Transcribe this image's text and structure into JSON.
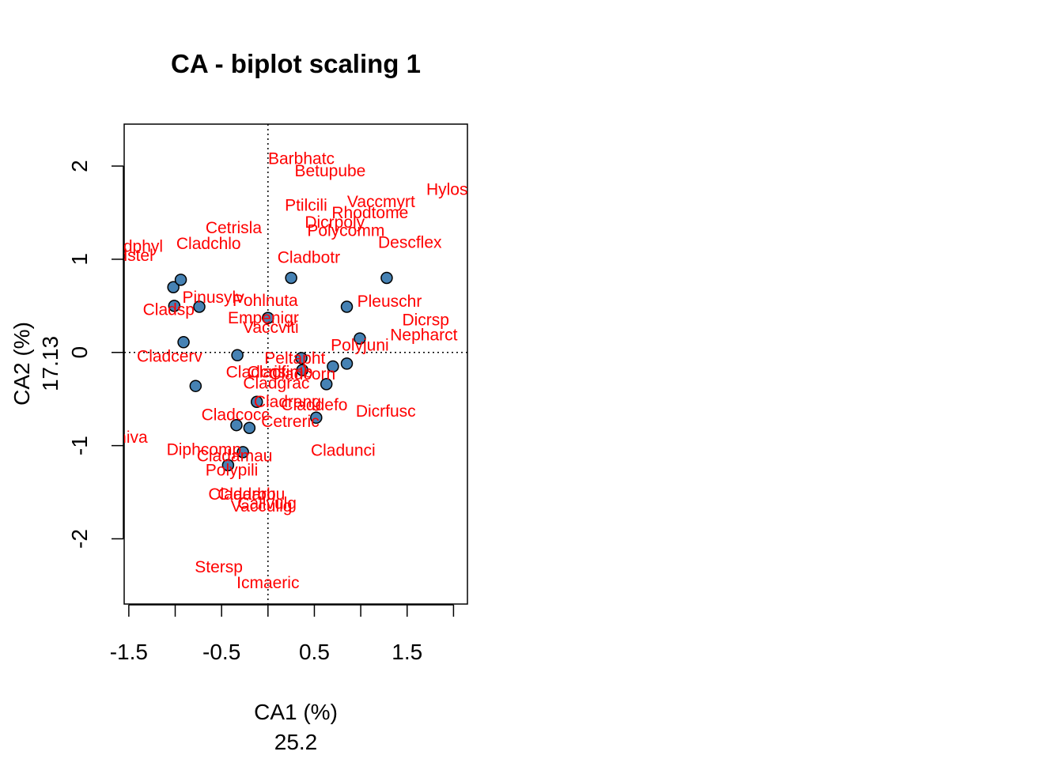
{
  "chart_data": {
    "type": "scatter",
    "title": "CA - biplot scaling 1",
    "xlabel": "CA1 (%)",
    "xlabel_value": "25.2",
    "ylabel": "CA2 (%)",
    "ylabel_value": "17.13",
    "xlim": [
      -1.55,
      2.15
    ],
    "ylim": [
      -2.7,
      2.45
    ],
    "xticks": [
      -1.5,
      -1.0,
      -0.5,
      0.0,
      0.5,
      1.0,
      1.5,
      2.0
    ],
    "xtick_labels": [
      "-1.5",
      "",
      "-0.5",
      "",
      "0.5",
      "",
      "1.5",
      ""
    ],
    "yticks": [
      -2,
      -1,
      0,
      1,
      2
    ],
    "ytick_labels": [
      "-2",
      "-1",
      "0",
      "1",
      "2"
    ],
    "reference_lines": {
      "x": 0,
      "y": 0,
      "style": "dotted"
    },
    "grid": false,
    "colors": {
      "sites": "#4682b4",
      "sites_edge": "#000000",
      "species": "#ff0000"
    },
    "sites": [
      {
        "x": -1.02,
        "y": 0.7
      },
      {
        "x": -0.94,
        "y": 0.78
      },
      {
        "x": -1.01,
        "y": 0.5
      },
      {
        "x": -0.74,
        "y": 0.49
      },
      {
        "x": 0.0,
        "y": 0.37
      },
      {
        "x": 0.25,
        "y": 0.8
      },
      {
        "x": 1.28,
        "y": 0.8
      },
      {
        "x": 0.85,
        "y": 0.49
      },
      {
        "x": 0.99,
        "y": 0.15
      },
      {
        "x": -0.91,
        "y": 0.11
      },
      {
        "x": -0.33,
        "y": -0.03
      },
      {
        "x": 0.36,
        "y": -0.06
      },
      {
        "x": 0.37,
        "y": -0.19
      },
      {
        "x": 0.7,
        "y": -0.15
      },
      {
        "x": 0.85,
        "y": -0.12
      },
      {
        "x": -0.78,
        "y": -0.36
      },
      {
        "x": 0.63,
        "y": -0.34
      },
      {
        "x": -0.12,
        "y": -0.53
      },
      {
        "x": 0.52,
        "y": -0.7
      },
      {
        "x": -0.34,
        "y": -0.78
      },
      {
        "x": -0.2,
        "y": -0.81
      },
      {
        "x": -0.27,
        "y": -1.07
      },
      {
        "x": -0.43,
        "y": -1.21
      }
    ],
    "species": [
      {
        "name": "Barbhatc",
        "x": 0.36,
        "y": 2.08
      },
      {
        "name": "Betupube",
        "x": 0.67,
        "y": 1.95
      },
      {
        "name": "Hylospl",
        "x": 2.0,
        "y": 1.75
      },
      {
        "name": "Vaccmyrt",
        "x": 1.22,
        "y": 1.62
      },
      {
        "name": "Ptilcili",
        "x": 0.41,
        "y": 1.58
      },
      {
        "name": "Rhodtome",
        "x": 1.1,
        "y": 1.5
      },
      {
        "name": "Dicrpoly",
        "x": 0.72,
        "y": 1.4
      },
      {
        "name": "Polycomm",
        "x": 0.84,
        "y": 1.31
      },
      {
        "name": "Cetrisla",
        "x": -0.37,
        "y": 1.34
      },
      {
        "name": "Descflex",
        "x": 1.53,
        "y": 1.18
      },
      {
        "name": "Cladphyl",
        "x": -1.48,
        "y": 1.14
      },
      {
        "name": "Cladchlo",
        "x": -0.64,
        "y": 1.17
      },
      {
        "name": "Cladstel",
        "x": -1.56,
        "y": 1.04
      },
      {
        "name": "Cladbotr",
        "x": 0.44,
        "y": 1.02
      },
      {
        "name": "Pinusylv",
        "x": -0.59,
        "y": 0.59
      },
      {
        "name": "Pohlnuta",
        "x": -0.03,
        "y": 0.56
      },
      {
        "name": "Pleuschr",
        "x": 1.31,
        "y": 0.55
      },
      {
        "name": "Cladsp",
        "x": -1.07,
        "y": 0.46
      },
      {
        "name": "Empenigr",
        "x": -0.05,
        "y": 0.37
      },
      {
        "name": "Dicrsp",
        "x": 1.7,
        "y": 0.35
      },
      {
        "name": "Vaccviti",
        "x": 0.03,
        "y": 0.27
      },
      {
        "name": "Nepharct",
        "x": 1.68,
        "y": 0.19
      },
      {
        "name": "Polyjuni",
        "x": 0.99,
        "y": 0.08
      },
      {
        "name": "Cladcerv",
        "x": -1.06,
        "y": -0.04
      },
      {
        "name": "Peltapht",
        "x": 0.29,
        "y": -0.06
      },
      {
        "name": "Cladcris",
        "x": -0.13,
        "y": -0.21
      },
      {
        "name": "Cladfimb",
        "x": 0.13,
        "y": -0.21
      },
      {
        "name": "Cladcorn",
        "x": 0.37,
        "y": -0.23
      },
      {
        "name": "Cladgrac",
        "x": 0.09,
        "y": -0.33
      },
      {
        "name": "Cladrang",
        "x": 0.21,
        "y": -0.53
      },
      {
        "name": "Claddefo",
        "x": 0.5,
        "y": -0.56
      },
      {
        "name": "Dicrfusc",
        "x": 1.27,
        "y": -0.63
      },
      {
        "name": "Cladcocc",
        "x": -0.35,
        "y": -0.67
      },
      {
        "name": "Cetreric",
        "x": 0.24,
        "y": -0.74
      },
      {
        "name": "Flavniva",
        "x": -1.63,
        "y": -0.91
      },
      {
        "name": "Cladunci",
        "x": 0.81,
        "y": -1.05
      },
      {
        "name": "Diphcomp",
        "x": -0.69,
        "y": -1.04
      },
      {
        "name": "Cladamau",
        "x": -0.36,
        "y": -1.11
      },
      {
        "name": "Polypili",
        "x": -0.39,
        "y": -1.26
      },
      {
        "name": "Cladarbu",
        "x": -0.28,
        "y": -1.52
      },
      {
        "name": "Cladarbu",
        "x": -0.18,
        "y": -1.52
      },
      {
        "name": "Callvulg",
        "x": -0.01,
        "y": -1.62
      },
      {
        "name": "Vacculig",
        "x": -0.07,
        "y": -1.65
      },
      {
        "name": "Stersp",
        "x": -0.53,
        "y": -2.3
      },
      {
        "name": "Icmaeric",
        "x": 0.0,
        "y": -2.47
      }
    ]
  }
}
